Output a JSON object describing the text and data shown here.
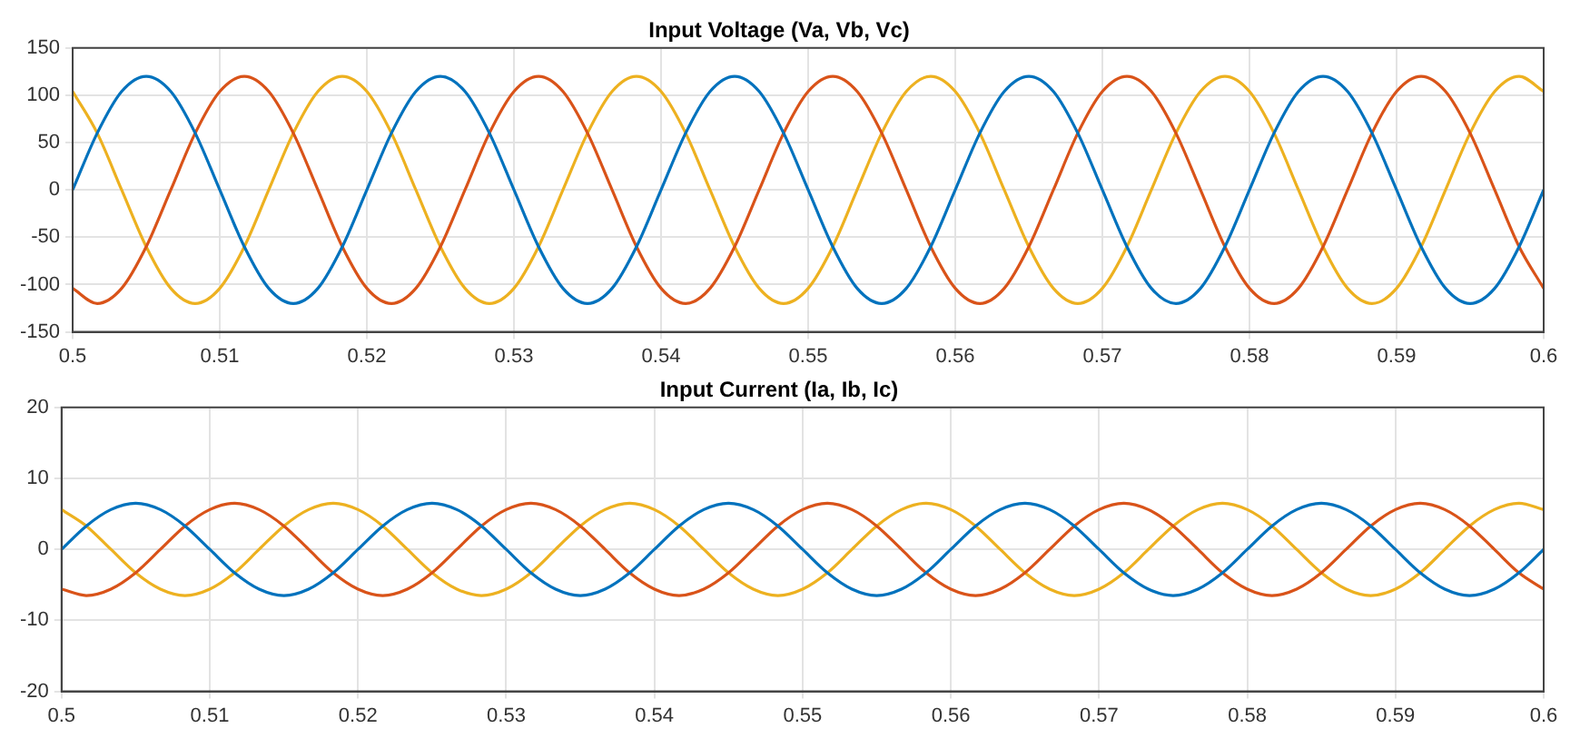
{
  "chart_data": [
    {
      "type": "line",
      "title": "Input Voltage (Va, Vb, Vc)",
      "x": [
        0.5,
        0.50167,
        0.50333,
        0.505,
        0.50667,
        0.50833,
        0.51,
        0.51167,
        0.51333,
        0.515,
        0.51667,
        0.51833,
        0.52,
        0.52167,
        0.52333,
        0.525,
        0.52667,
        0.52833,
        0.53,
        0.53167,
        0.53333,
        0.535,
        0.53667,
        0.53833,
        0.54,
        0.54167,
        0.54333,
        0.545,
        0.54667,
        0.54833,
        0.55,
        0.55167,
        0.55333,
        0.555,
        0.55667,
        0.55833,
        0.56,
        0.56167,
        0.56333,
        0.565,
        0.56667,
        0.56833,
        0.57,
        0.57167,
        0.57333,
        0.575,
        0.57667,
        0.57833,
        0.58,
        0.58167,
        0.58333,
        0.585,
        0.58667,
        0.58833,
        0.59,
        0.59167,
        0.59333,
        0.595,
        0.59667,
        0.59833,
        0.6
      ],
      "series": [
        {
          "color": "#0072bd",
          "values": [
            0,
            60,
            104,
            120,
            104,
            60,
            0,
            -60,
            -104,
            -120,
            -104,
            -60,
            0,
            60,
            104,
            120,
            104,
            60,
            0,
            -60,
            -104,
            -120,
            -104,
            -60,
            0,
            60,
            104,
            120,
            104,
            60,
            0,
            -60,
            -104,
            -120,
            -104,
            -60,
            0,
            60,
            104,
            120,
            104,
            60,
            0,
            -60,
            -104,
            -120,
            -104,
            -60,
            0,
            60,
            104,
            120,
            104,
            60,
            0,
            -60,
            -104,
            -120,
            -104,
            -60,
            0
          ]
        },
        {
          "color": "#d95319",
          "values": [
            -104,
            -120,
            -104,
            -60,
            0,
            60,
            104,
            120,
            104,
            60,
            0,
            -60,
            -104,
            -120,
            -104,
            -60,
            0,
            60,
            104,
            120,
            104,
            60,
            0,
            -60,
            -104,
            -120,
            -104,
            -60,
            0,
            60,
            104,
            120,
            104,
            60,
            0,
            -60,
            -104,
            -120,
            -104,
            -60,
            0,
            60,
            104,
            120,
            104,
            60,
            0,
            -60,
            -104,
            -120,
            -104,
            -60,
            0,
            60,
            104,
            120,
            104,
            60,
            0,
            -60,
            -104
          ]
        },
        {
          "color": "#edb120",
          "values": [
            104,
            60,
            0,
            -60,
            -104,
            -120,
            -104,
            -60,
            0,
            60,
            104,
            120,
            104,
            60,
            0,
            -60,
            -104,
            -120,
            -104,
            -60,
            0,
            60,
            104,
            120,
            104,
            60,
            0,
            -60,
            -104,
            -120,
            -104,
            -60,
            0,
            60,
            104,
            120,
            104,
            60,
            0,
            -60,
            -104,
            -120,
            -104,
            -60,
            0,
            60,
            104,
            120,
            104,
            60,
            0,
            -60,
            -104,
            -120,
            -104,
            -60,
            0,
            60,
            104,
            120,
            104
          ]
        }
      ],
      "xlim": [
        0.5,
        0.6
      ],
      "xticks": [
        0.5,
        0.51,
        0.52,
        0.53,
        0.54,
        0.55,
        0.56,
        0.57,
        0.58,
        0.59,
        0.6
      ],
      "ylim": [
        -150,
        150
      ],
      "yticks": [
        -150,
        -100,
        -50,
        0,
        50,
        100,
        150
      ],
      "grid": true,
      "legend": false,
      "marker": "none",
      "line_style": "solid"
    },
    {
      "type": "line",
      "title": "Input Current (Ia, Ib, Ic)",
      "x": [
        0.5,
        0.50167,
        0.50333,
        0.505,
        0.50667,
        0.50833,
        0.51,
        0.51167,
        0.51333,
        0.515,
        0.51667,
        0.51833,
        0.52,
        0.52167,
        0.52333,
        0.525,
        0.52667,
        0.52833,
        0.53,
        0.53167,
        0.53333,
        0.535,
        0.53667,
        0.53833,
        0.54,
        0.54167,
        0.54333,
        0.545,
        0.54667,
        0.54833,
        0.55,
        0.55167,
        0.55333,
        0.555,
        0.55667,
        0.55833,
        0.56,
        0.56167,
        0.56333,
        0.565,
        0.56667,
        0.56833,
        0.57,
        0.57167,
        0.57333,
        0.575,
        0.57667,
        0.57833,
        0.58,
        0.58167,
        0.58333,
        0.585,
        0.58667,
        0.58833,
        0.59,
        0.59167,
        0.59333,
        0.595,
        0.59667,
        0.59833,
        0.6
      ],
      "series": [
        {
          "color": "#0072bd",
          "values": [
            0,
            3.3,
            5.6,
            6.5,
            5.6,
            3.3,
            0,
            -3.3,
            -5.6,
            -6.5,
            -5.6,
            -3.3,
            0,
            3.3,
            5.6,
            6.5,
            5.6,
            3.3,
            0,
            -3.3,
            -5.6,
            -6.5,
            -5.6,
            -3.3,
            0,
            3.3,
            5.6,
            6.5,
            5.6,
            3.3,
            0,
            -3.3,
            -5.6,
            -6.5,
            -5.6,
            -3.3,
            0,
            3.3,
            5.6,
            6.5,
            5.6,
            3.3,
            0,
            -3.3,
            -5.6,
            -6.5,
            -5.6,
            -3.3,
            0,
            3.3,
            5.6,
            6.5,
            5.6,
            3.3,
            0,
            -3.3,
            -5.6,
            -6.5,
            -5.6,
            -3.3,
            0
          ]
        },
        {
          "color": "#d95319",
          "values": [
            -5.6,
            -6.5,
            -5.6,
            -3.3,
            0,
            3.3,
            5.6,
            6.5,
            5.6,
            3.3,
            0,
            -3.3,
            -5.6,
            -6.5,
            -5.6,
            -3.3,
            0,
            3.3,
            5.6,
            6.5,
            5.6,
            3.3,
            0,
            -3.3,
            -5.6,
            -6.5,
            -5.6,
            -3.3,
            0,
            3.3,
            5.6,
            6.5,
            5.6,
            3.3,
            0,
            -3.3,
            -5.6,
            -6.5,
            -5.6,
            -3.3,
            0,
            3.3,
            5.6,
            6.5,
            5.6,
            3.3,
            0,
            -3.3,
            -5.6,
            -6.5,
            -5.6,
            -3.3,
            0,
            3.3,
            5.6,
            6.5,
            5.6,
            3.3,
            0,
            -3.3,
            -5.6
          ]
        },
        {
          "color": "#edb120",
          "values": [
            5.6,
            3.3,
            0,
            -3.3,
            -5.6,
            -6.5,
            -5.6,
            -3.3,
            0,
            3.3,
            5.6,
            6.5,
            5.6,
            3.3,
            0,
            -3.3,
            -5.6,
            -6.5,
            -5.6,
            -3.3,
            0,
            3.3,
            5.6,
            6.5,
            5.6,
            3.3,
            0,
            -3.3,
            -5.6,
            -6.5,
            -5.6,
            -3.3,
            0,
            3.3,
            5.6,
            6.5,
            5.6,
            3.3,
            0,
            -3.3,
            -5.6,
            -6.5,
            -5.6,
            -3.3,
            0,
            3.3,
            5.6,
            6.5,
            5.6,
            3.3,
            0,
            -3.3,
            -5.6,
            -6.5,
            -5.6,
            -3.3,
            0,
            3.3,
            5.6,
            6.5,
            5.6
          ]
        }
      ],
      "xlim": [
        0.5,
        0.6
      ],
      "xticks": [
        0.5,
        0.51,
        0.52,
        0.53,
        0.54,
        0.55,
        0.56,
        0.57,
        0.58,
        0.59,
        0.6
      ],
      "ylim": [
        -20,
        20
      ],
      "yticks": [
        -20,
        -10,
        0,
        10,
        20
      ],
      "grid": true,
      "legend": false,
      "marker": "none",
      "line_style": "solid"
    }
  ]
}
